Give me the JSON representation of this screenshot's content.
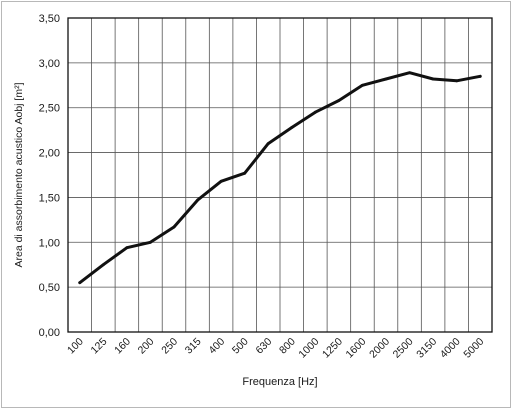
{
  "chart_data": {
    "type": "line",
    "title": "",
    "xlabel": "Frequenza [Hz]",
    "ylabel": "Area di assorbimento acustico Aobj [m²]",
    "categories": [
      "100",
      "125",
      "160",
      "200",
      "250",
      "315",
      "400",
      "500",
      "630",
      "800",
      "1000",
      "1250",
      "1600",
      "2000",
      "2500",
      "3150",
      "4000",
      "5000"
    ],
    "y_ticks": [
      "0,00",
      "0,50",
      "1,00",
      "1,50",
      "2,00",
      "2,50",
      "3,00",
      "3,50"
    ],
    "ylim": [
      0,
      3.5
    ],
    "grid": true,
    "series": [
      {
        "values": [
          0.55,
          0.75,
          0.94,
          1.0,
          1.17,
          1.47,
          1.68,
          1.77,
          2.1,
          2.28,
          2.45,
          2.58,
          2.75,
          2.82,
          2.89,
          2.82,
          2.8,
          2.85
        ]
      }
    ],
    "line_color": "#111111",
    "grid_color": "#555555"
  }
}
